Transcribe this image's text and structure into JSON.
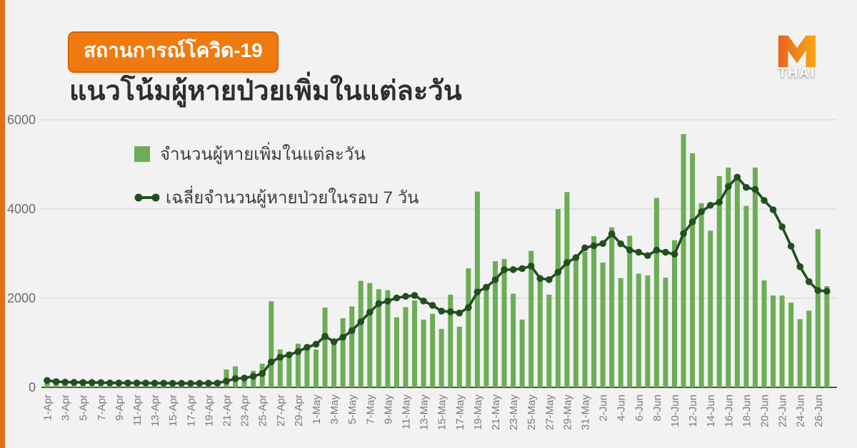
{
  "page": {
    "background": "#f2f2f2",
    "accent_strip_color": "#e2711d"
  },
  "header": {
    "badge_label": "สถานการณ์โควิด-19",
    "badge_color": "#ef7b10",
    "title": "แนวโน้มผู้หายป่วยเพิ่มในแต่ละวัน"
  },
  "logo": {
    "text": "THAI",
    "m_color_left": "#e8641c",
    "m_color_right": "#fba714"
  },
  "legend": [
    {
      "label": "จำนวนผู้หายเพิ่มในแต่ละวัน",
      "type": "bar",
      "color": "#6cad55"
    },
    {
      "label": "เฉลี่ยจำนวนผู้หายป่วยในรอบ 7 วัน",
      "type": "line",
      "color": "#234e22"
    }
  ],
  "chart_data": {
    "type": "bar",
    "title": "แนวโน้มผู้หายป่วยเพิ่มในแต่ละวัน",
    "xlabel": "",
    "ylabel": "",
    "ylim": [
      0,
      6000
    ],
    "yticks": [
      0,
      2000,
      4000,
      6000
    ],
    "grid": true,
    "x_label_every": 2,
    "x_label_rotation": -90,
    "legend_position": "top-left-inside",
    "categories": [
      "1-Apr",
      "2-Apr",
      "3-Apr",
      "4-Apr",
      "5-Apr",
      "6-Apr",
      "7-Apr",
      "8-Apr",
      "9-Apr",
      "10-Apr",
      "11-Apr",
      "12-Apr",
      "13-Apr",
      "14-Apr",
      "15-Apr",
      "16-Apr",
      "17-Apr",
      "18-Apr",
      "19-Apr",
      "20-Apr",
      "21-Apr",
      "22-Apr",
      "23-Apr",
      "24-Apr",
      "25-Apr",
      "26-Apr",
      "27-Apr",
      "28-Apr",
      "29-Apr",
      "30-Apr",
      "1-May",
      "2-May",
      "3-May",
      "4-May",
      "5-May",
      "6-May",
      "7-May",
      "8-May",
      "9-May",
      "10-May",
      "11-May",
      "12-May",
      "13-May",
      "14-May",
      "15-May",
      "16-May",
      "17-May",
      "18-May",
      "19-May",
      "20-May",
      "21-May",
      "22-May",
      "23-May",
      "24-May",
      "25-May",
      "26-May",
      "27-May",
      "28-May",
      "29-May",
      "30-May",
      "31-May",
      "1-Jun",
      "2-Jun",
      "3-Jun",
      "4-Jun",
      "5-Jun",
      "6-Jun",
      "7-Jun",
      "8-Jun",
      "9-Jun",
      "10-Jun",
      "11-Jun",
      "12-Jun",
      "13-Jun",
      "14-Jun",
      "15-Jun",
      "16-Jun",
      "17-Jun",
      "18-Jun",
      "19-Jun",
      "20-Jun",
      "21-Jun",
      "22-Jun",
      "23-Jun",
      "24-Jun",
      "25-Jun",
      "26-Jun",
      "27-Jun"
    ],
    "series": [
      {
        "name": "จำนวนผู้หายเพิ่มในแต่ละวัน",
        "type": "bar",
        "color": "#6cad55",
        "values": [
          155,
          100,
          100,
          95,
          100,
          105,
          100,
          100,
          95,
          100,
          95,
          90,
          85,
          90,
          85,
          90,
          95,
          100,
          105,
          110,
          400,
          470,
          180,
          370,
          530,
          1930,
          850,
          780,
          980,
          850,
          850,
          1790,
          1070,
          1550,
          1815,
          2390,
          2340,
          2200,
          2180,
          1570,
          1800,
          1950,
          1520,
          1650,
          1310,
          2080,
          1360,
          2670,
          4390,
          2260,
          2830,
          2880,
          2100,
          1520,
          3060,
          2450,
          2080,
          4000,
          4380,
          2890,
          3040,
          3390,
          2800,
          3590,
          2450,
          3400,
          2550,
          2510,
          4250,
          2460,
          3300,
          5680,
          5250,
          4130,
          3515,
          4740,
          4930,
          4760,
          4070,
          4930,
          2400,
          2060,
          2060,
          1900,
          1530,
          1720,
          3550,
          2270
        ]
      },
      {
        "name": "เฉลี่ยจำนวนผู้หายป่วยในรอบ 7 วัน",
        "type": "line",
        "color": "#234e22",
        "values": [
          155,
          128,
          118,
          113,
          110,
          109,
          108,
          100,
          99,
          99,
          99,
          98,
          95,
          94,
          91,
          91,
          90,
          91,
          93,
          96,
          141,
          196,
          209,
          248,
          309,
          570,
          676,
          730,
          803,
          899,
          967,
          1147,
          1024,
          1124,
          1272,
          1474,
          1686,
          1879,
          1935,
          2006,
          2042,
          2061,
          1937,
          1839,
          1711,
          1697,
          1667,
          1791,
          2140,
          2246,
          2414,
          2639,
          2641,
          2664,
          2720,
          2443,
          2417,
          2584,
          2799,
          2911,
          3129,
          3176,
          3226,
          3441,
          3220,
          3080,
          3031,
          2956,
          3079,
          3030,
          2989,
          3450,
          3714,
          3940,
          4084,
          4154,
          4506,
          4715,
          4485,
          4439,
          4192,
          3984,
          3601,
          3169,
          2707,
          2371,
          2174,
          2156
        ]
      }
    ],
    "axis": {
      "tick_color": "#6b6b6b",
      "grid_color": "#d9d9d9",
      "baseline_color": "#4f4f4f",
      "x_label_color": "#7a7a7a"
    }
  }
}
